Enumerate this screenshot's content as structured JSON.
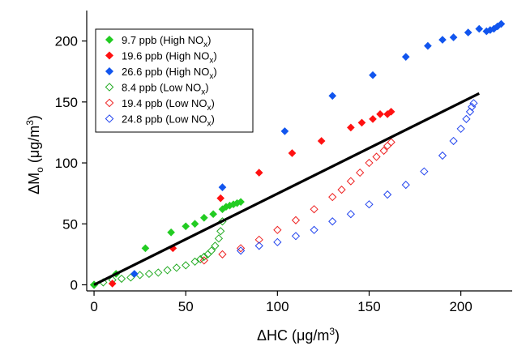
{
  "chart_data": {
    "type": "scatter",
    "xlabel": "ΔHC (μg/m³)",
    "ylabel": "ΔMo (μg/m³)",
    "xlim": [
      -4,
      228
    ],
    "ylim": [
      -5,
      225
    ],
    "xticks": [
      0,
      50,
      100,
      150,
      200
    ],
    "yticks": [
      0,
      50,
      100,
      150,
      200
    ],
    "legend_position": "top-left",
    "series": [
      {
        "name": "9.7 ppb (High NOx)",
        "color": "#22cc22",
        "marker": "filled-diamond",
        "points": [
          [
            0,
            0
          ],
          [
            12,
            9
          ],
          [
            28,
            30
          ],
          [
            42,
            43
          ],
          [
            50,
            48
          ],
          [
            55,
            50
          ],
          [
            60,
            55
          ],
          [
            65,
            58
          ],
          [
            70,
            62
          ],
          [
            72,
            64
          ],
          [
            74,
            65
          ],
          [
            76,
            66
          ],
          [
            78,
            67
          ],
          [
            80,
            68
          ]
        ]
      },
      {
        "name": "19.6 ppb (High NOx)",
        "color": "#ff1111",
        "marker": "filled-diamond",
        "points": [
          [
            10,
            1
          ],
          [
            43,
            30
          ],
          [
            69,
            71
          ],
          [
            90,
            92
          ],
          [
            108,
            108
          ],
          [
            124,
            118
          ],
          [
            140,
            129
          ],
          [
            146,
            133
          ],
          [
            152,
            136
          ],
          [
            156,
            140
          ],
          [
            160,
            140
          ],
          [
            162,
            142
          ]
        ]
      },
      {
        "name": "26.6 ppb (High NOx)",
        "color": "#1155ee",
        "marker": "filled-diamond",
        "points": [
          [
            22,
            9
          ],
          [
            70,
            80
          ],
          [
            104,
            126
          ],
          [
            130,
            155
          ],
          [
            152,
            172
          ],
          [
            170,
            187
          ],
          [
            182,
            196
          ],
          [
            190,
            201
          ],
          [
            196,
            203
          ],
          [
            204,
            207
          ],
          [
            210,
            210
          ],
          [
            214,
            208
          ],
          [
            216,
            209
          ],
          [
            218,
            210
          ],
          [
            220,
            212
          ],
          [
            222,
            214
          ]
        ]
      },
      {
        "name": "8.4 ppb (Low NOx)",
        "color": "#22aa22",
        "marker": "open-diamond",
        "points": [
          [
            0,
            0
          ],
          [
            5,
            2
          ],
          [
            10,
            4
          ],
          [
            15,
            5
          ],
          [
            20,
            6
          ],
          [
            25,
            8
          ],
          [
            30,
            9
          ],
          [
            35,
            10
          ],
          [
            40,
            12
          ],
          [
            45,
            14
          ],
          [
            50,
            16
          ],
          [
            55,
            19
          ],
          [
            58,
            21
          ],
          [
            60,
            23
          ],
          [
            62,
            25
          ],
          [
            64,
            28
          ],
          [
            66,
            32
          ],
          [
            68,
            38
          ],
          [
            69,
            44
          ],
          [
            70,
            52
          ]
        ]
      },
      {
        "name": "19.4 ppb (Low NOx)",
        "color": "#ee2222",
        "marker": "open-diamond",
        "points": [
          [
            60,
            20
          ],
          [
            70,
            25
          ],
          [
            80,
            30
          ],
          [
            90,
            37
          ],
          [
            100,
            45
          ],
          [
            110,
            53
          ],
          [
            120,
            62
          ],
          [
            130,
            72
          ],
          [
            135,
            78
          ],
          [
            140,
            85
          ],
          [
            145,
            92
          ],
          [
            150,
            100
          ],
          [
            154,
            105
          ],
          [
            158,
            110
          ],
          [
            160,
            114
          ],
          [
            162,
            117
          ]
        ]
      },
      {
        "name": "24.8 ppb (Low NOx)",
        "color": "#2244ee",
        "marker": "open-diamond",
        "points": [
          [
            80,
            28
          ],
          [
            90,
            32
          ],
          [
            100,
            35
          ],
          [
            110,
            40
          ],
          [
            120,
            45
          ],
          [
            130,
            52
          ],
          [
            140,
            58
          ],
          [
            150,
            66
          ],
          [
            160,
            74
          ],
          [
            170,
            82
          ],
          [
            180,
            93
          ],
          [
            190,
            106
          ],
          [
            196,
            118
          ],
          [
            200,
            128
          ],
          [
            203,
            136
          ],
          [
            205,
            142
          ],
          [
            206,
            146
          ],
          [
            207,
            149
          ]
        ]
      }
    ],
    "fit_line": {
      "color": "#000000",
      "points": [
        [
          0,
          0
        ],
        [
          210,
          157
        ]
      ]
    }
  }
}
